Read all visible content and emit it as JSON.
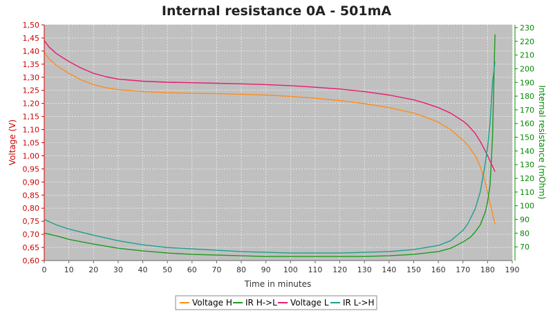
{
  "chart_data": {
    "type": "line",
    "title": "Internal resistance  0A - 501mA",
    "xlabel": "Time in minutes",
    "ylabel_left": "Voltage (V)",
    "ylabel_right": "Internal resistance (mOhm)",
    "xlim": [
      0,
      190
    ],
    "ylim_left": [
      0.6,
      1.5
    ],
    "ylim_right": [
      60,
      232
    ],
    "x_ticks": [
      0,
      10,
      20,
      30,
      40,
      50,
      60,
      70,
      80,
      90,
      100,
      110,
      120,
      130,
      140,
      150,
      160,
      170,
      180,
      190
    ],
    "y_left_ticks": [
      "0,60",
      "0,65",
      "0,70",
      "0,75",
      "0,80",
      "0,85",
      "0,90",
      "0,95",
      "1,00",
      "1,05",
      "1,10",
      "1,15",
      "1,20",
      "1,25",
      "1,30",
      "1,35",
      "1,40",
      "1,45",
      "1,50"
    ],
    "y_left_tick_values": [
      0.6,
      0.65,
      0.7,
      0.75,
      0.8,
      0.85,
      0.9,
      0.95,
      1.0,
      1.05,
      1.1,
      1.15,
      1.2,
      1.25,
      1.3,
      1.35,
      1.4,
      1.45,
      1.5
    ],
    "y_right_ticks": [
      70,
      80,
      90,
      100,
      110,
      120,
      130,
      140,
      150,
      160,
      170,
      180,
      190,
      200,
      210,
      220,
      230
    ],
    "grid": true,
    "legend_position": "bottom",
    "colors": {
      "left_axis": "#cc0000",
      "right_axis": "#008800",
      "plot_bg": "#c0c0c0",
      "grid": "#ffffff"
    },
    "series": [
      {
        "name": "Voltage H",
        "axis": "left",
        "color": "#ff8c1a",
        "x": [
          0,
          2,
          5,
          10,
          15,
          20,
          25,
          30,
          40,
          50,
          60,
          70,
          80,
          90,
          100,
          110,
          120,
          130,
          140,
          150,
          155,
          160,
          165,
          170,
          172,
          175,
          177,
          179,
          180,
          181,
          182,
          183
        ],
        "y": [
          1.395,
          1.37,
          1.345,
          1.315,
          1.29,
          1.272,
          1.26,
          1.253,
          1.245,
          1.241,
          1.239,
          1.237,
          1.235,
          1.232,
          1.227,
          1.22,
          1.211,
          1.199,
          1.184,
          1.163,
          1.147,
          1.128,
          1.1,
          1.06,
          1.04,
          1.0,
          0.96,
          0.9,
          0.86,
          0.82,
          0.78,
          0.74
        ]
      },
      {
        "name": "IR H->L",
        "axis": "right",
        "color": "#1a9a1a",
        "x": [
          0,
          5,
          10,
          20,
          30,
          40,
          50,
          60,
          70,
          80,
          90,
          100,
          110,
          120,
          130,
          140,
          150,
          160,
          165,
          170,
          173,
          175,
          177,
          179,
          180,
          181,
          182,
          183
        ],
        "y": [
          80,
          78,
          75.5,
          72,
          69,
          67,
          65.5,
          64.5,
          64,
          63.5,
          63,
          63,
          63,
          63,
          63,
          63.5,
          64.5,
          66.5,
          69,
          73.5,
          77,
          81,
          86,
          95,
          103,
          115,
          150,
          225
        ]
      },
      {
        "name": "Voltage L",
        "axis": "left",
        "color": "#e8196e",
        "x": [
          0,
          2,
          5,
          10,
          15,
          20,
          25,
          30,
          40,
          50,
          60,
          70,
          80,
          90,
          100,
          110,
          120,
          130,
          140,
          150,
          155,
          160,
          165,
          170,
          172,
          175,
          177,
          179,
          180,
          181,
          182,
          183
        ],
        "y": [
          1.44,
          1.415,
          1.39,
          1.36,
          1.335,
          1.315,
          1.302,
          1.293,
          1.285,
          1.281,
          1.279,
          1.277,
          1.275,
          1.272,
          1.268,
          1.262,
          1.255,
          1.245,
          1.232,
          1.214,
          1.2,
          1.184,
          1.163,
          1.133,
          1.117,
          1.085,
          1.055,
          1.02,
          1.0,
          0.98,
          0.96,
          0.94
        ]
      },
      {
        "name": "IR L->H",
        "axis": "right",
        "color": "#1aa08a",
        "x": [
          0,
          5,
          10,
          20,
          30,
          40,
          50,
          60,
          70,
          80,
          90,
          100,
          110,
          120,
          130,
          140,
          150,
          160,
          165,
          170,
          172,
          175,
          177,
          179,
          180,
          181,
          182,
          183
        ],
        "y": [
          90,
          86,
          83,
          78.5,
          74.5,
          71.5,
          69.5,
          68.5,
          67.5,
          66.5,
          66,
          65.5,
          65.5,
          65.5,
          66,
          66.5,
          68,
          71,
          74.5,
          82,
          87,
          98,
          110,
          130,
          143,
          160,
          190,
          205
        ]
      }
    ]
  }
}
